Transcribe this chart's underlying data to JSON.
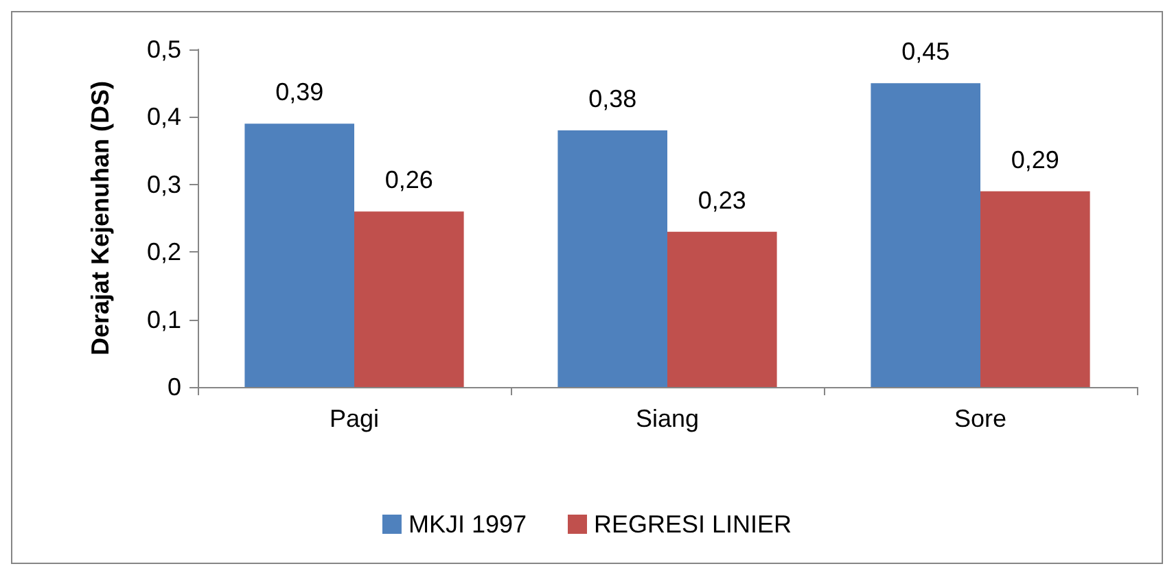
{
  "chart_data": {
    "type": "bar",
    "ylabel": "Derajat Kejenuhan (DS)",
    "categories": [
      "Pagi",
      "Siang",
      "Sore"
    ],
    "series": [
      {
        "name": "MKJI 1997",
        "color": "#4f81bd",
        "values": [
          0.39,
          0.38,
          0.45
        ],
        "value_labels": [
          "0,39",
          "0,38",
          "0,45"
        ]
      },
      {
        "name": "REGRESI LINIER",
        "color": "#c0504d",
        "values": [
          0.26,
          0.23,
          0.29
        ],
        "value_labels": [
          "0,26",
          "0,23",
          "0,29"
        ]
      }
    ],
    "ylim": [
      0,
      0.5
    ],
    "yticks": [
      {
        "value": 0,
        "label": "0"
      },
      {
        "value": 0.1,
        "label": "0,1"
      },
      {
        "value": 0.2,
        "label": "0,2"
      },
      {
        "value": 0.3,
        "label": "0,3"
      },
      {
        "value": 0.4,
        "label": "0,4"
      },
      {
        "value": 0.5,
        "label": "0,5"
      }
    ],
    "grid": false,
    "legend": "bottom"
  }
}
